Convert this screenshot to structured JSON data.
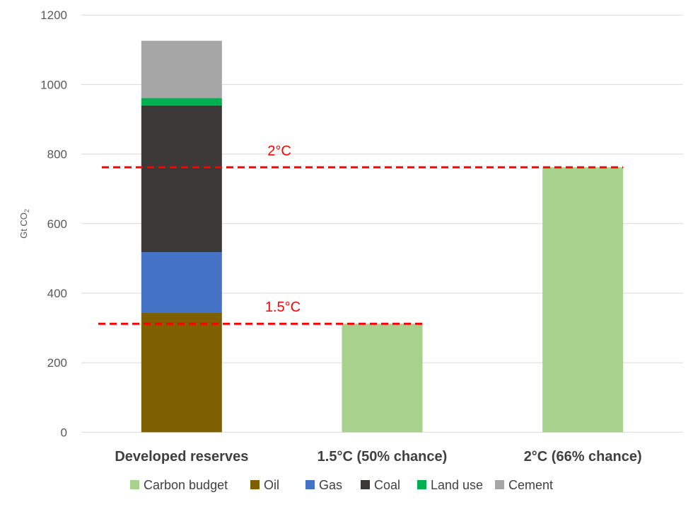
{
  "chart_data": {
    "type": "bar",
    "stacked": true,
    "ylabel": "Gt CO",
    "ylabel_subscript": "2",
    "ylim": [
      0,
      1200
    ],
    "yticks": [
      0,
      200,
      400,
      600,
      800,
      1000,
      1200
    ],
    "grid": true,
    "legend_position": "bottom",
    "categories": [
      "Developed reserves",
      "1.5°C (50% chance)",
      "2°C (66% chance)"
    ],
    "series": [
      {
        "name": "Carbon budget",
        "color": "#A9D18E",
        "values": [
          0,
          312,
          762
        ]
      },
      {
        "name": "Oil",
        "color": "#7F6000",
        "values": [
          343,
          0,
          0
        ]
      },
      {
        "name": "Gas",
        "color": "#4472C4",
        "values": [
          175,
          0,
          0
        ]
      },
      {
        "name": "Coal",
        "color": "#3A3938",
        "values": [
          422,
          0,
          0
        ]
      },
      {
        "name": "Land use",
        "color": "#00B050",
        "values": [
          21,
          0,
          0
        ]
      },
      {
        "name": "Cement",
        "color": "#A6A6A6",
        "values": [
          165,
          0,
          0
        ]
      }
    ],
    "reference_lines": [
      {
        "label": "2°C",
        "value": 762,
        "color": "#FF0000",
        "from_category": 0,
        "to_category": 2
      },
      {
        "label": "1.5°C",
        "value": 312,
        "color": "#FF0000",
        "from_category": 0,
        "to_category": 1
      }
    ]
  }
}
